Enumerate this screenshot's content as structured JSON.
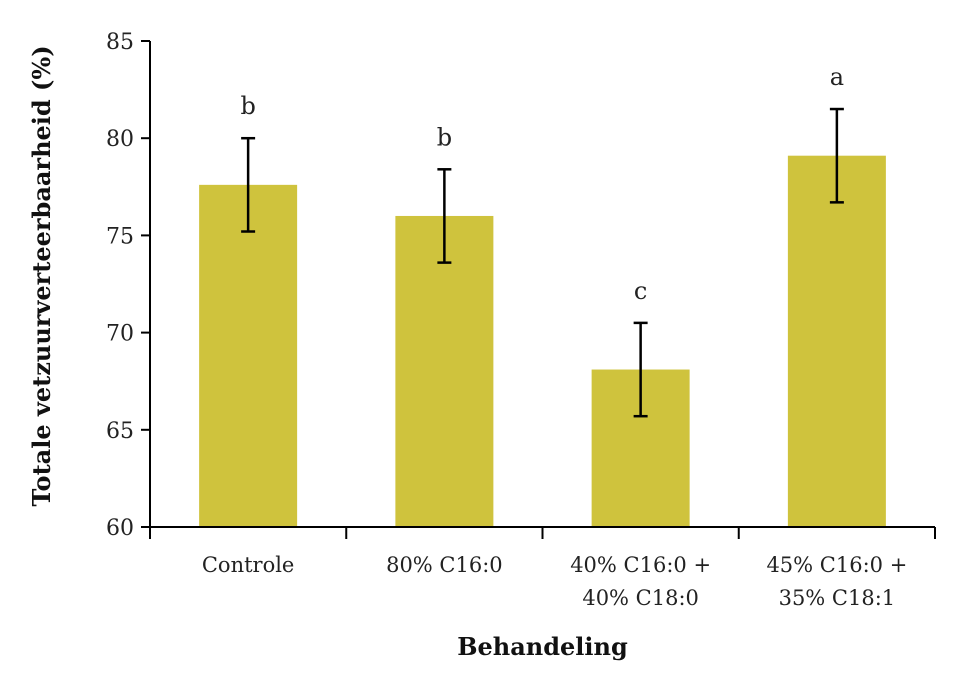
{
  "chart_data": {
    "type": "bar",
    "title": "",
    "xlabel": "Behandeling",
    "ylabel": "Totale vetzuurverteerbaarheid (%)",
    "ylim": [
      60,
      85
    ],
    "yticks": [
      60,
      65,
      70,
      75,
      80,
      85
    ],
    "grid": false,
    "legend": "none",
    "bar_color": "#CFC33D",
    "categories": [
      [
        "Controle"
      ],
      [
        "80% C16:0"
      ],
      [
        "40% C16:0 +",
        "40% C18:0"
      ],
      [
        "45% C16:0 +",
        "35% C18:1"
      ]
    ],
    "values": [
      77.6,
      76.0,
      68.1,
      79.1
    ],
    "error": [
      2.4,
      2.4,
      2.4,
      2.4
    ],
    "significance_letters": [
      "b",
      "b",
      "c",
      "a"
    ]
  }
}
